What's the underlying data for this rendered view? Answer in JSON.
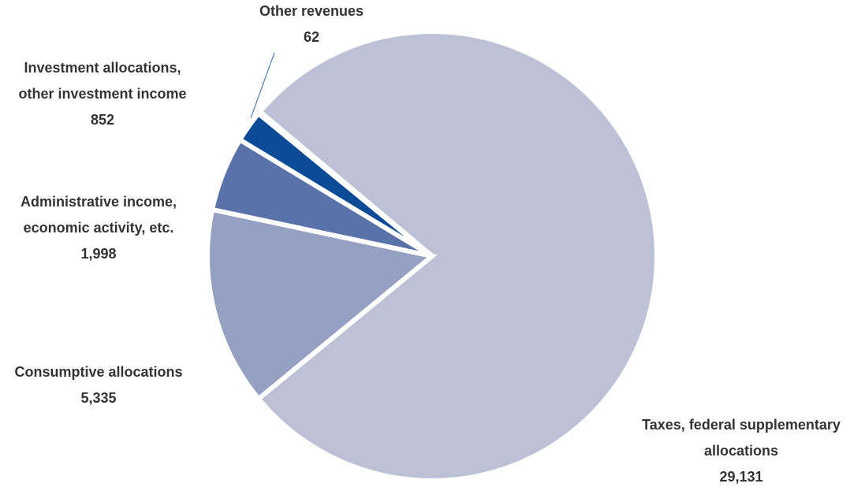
{
  "chart_data": {
    "type": "pie",
    "categories": [
      [
        "Taxes, federal supplementary",
        "allocations"
      ],
      [
        "Consumptive allocations"
      ],
      [
        "Administrative income,",
        "economic activity, etc."
      ],
      [
        "Investment allocations,",
        "other investment income"
      ],
      [
        "Other revenues"
      ]
    ],
    "values": [
      29131,
      5335,
      1998,
      852,
      62
    ],
    "value_labels": [
      "29,131",
      "5,335",
      "1,998",
      "852",
      "62"
    ],
    "colors": [
      "#bcc1d6",
      "#95a0c2",
      "#5a72aa",
      "#0a4a96",
      "#2a66b0"
    ],
    "start_angle": -50
  }
}
